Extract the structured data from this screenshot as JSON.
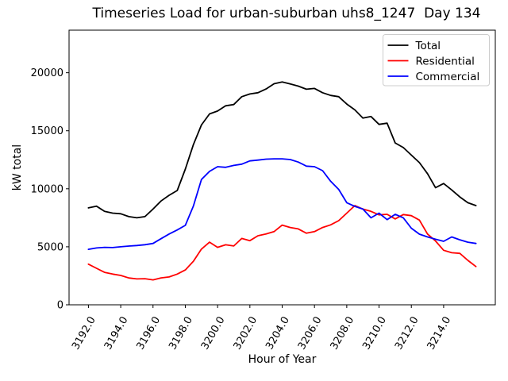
{
  "chart_data": {
    "type": "line",
    "title": "Timeseries Load for urban-suburban uhs8_1247  Day 134",
    "xlabel": "Hour of Year",
    "ylabel": "kW total",
    "grid": false,
    "x_start": 3192.0,
    "x_step": 0.5,
    "xlim": [
      3190.8,
      3217.2
    ],
    "ylim": [
      0,
      23670
    ],
    "x_tick_values": [
      3192,
      3194,
      3196,
      3198,
      3200,
      3202,
      3204,
      3206,
      3208,
      3210,
      3212,
      3214
    ],
    "x_tick_labels": [
      "3192.0",
      "3194.0",
      "3196.0",
      "3198.0",
      "3200.0",
      "3202.0",
      "3204.0",
      "3206.0",
      "3208.0",
      "3210.0",
      "3212.0",
      "3214.0"
    ],
    "y_tick_values": [
      0,
      5000,
      10000,
      15000,
      20000
    ],
    "y_tick_labels": [
      "0",
      "5000",
      "10000",
      "15000",
      "20000"
    ],
    "x_tick_rotation_deg": 60,
    "legend": {
      "position": "upper right",
      "border_color": "#cccccc",
      "background": "#ffffff",
      "entries": [
        "Total",
        "Residential",
        "Commercial"
      ]
    },
    "series": [
      {
        "name": "Total",
        "color": "#000000",
        "values": [
          8350,
          8500,
          8050,
          7900,
          7850,
          7600,
          7500,
          7600,
          8250,
          8950,
          9440,
          9850,
          11700,
          13800,
          15500,
          16450,
          16700,
          17150,
          17260,
          17940,
          18170,
          18280,
          18600,
          19050,
          19200,
          19030,
          18850,
          18580,
          18650,
          18280,
          18050,
          17940,
          17300,
          16800,
          16100,
          16230,
          15550,
          15650,
          13950,
          13550,
          12900,
          12250,
          11300,
          10100,
          10450,
          9900,
          9300,
          8800,
          8550
        ]
      },
      {
        "name": "Residential",
        "color": "#ff0000",
        "values": [
          3500,
          3150,
          2800,
          2650,
          2530,
          2310,
          2230,
          2250,
          2150,
          2320,
          2400,
          2650,
          3000,
          3750,
          4800,
          5400,
          4950,
          5170,
          5070,
          5720,
          5530,
          5950,
          6100,
          6310,
          6870,
          6660,
          6540,
          6170,
          6310,
          6660,
          6890,
          7250,
          7900,
          8550,
          8250,
          8050,
          7750,
          7800,
          7400,
          7780,
          7680,
          7300,
          6100,
          5500,
          4700,
          4490,
          4430,
          3830,
          3300
        ]
      },
      {
        "name": "Commercial",
        "color": "#0000ff",
        "values": [
          4780,
          4900,
          4950,
          4930,
          5000,
          5060,
          5110,
          5180,
          5290,
          5700,
          6100,
          6450,
          6850,
          8500,
          10800,
          11500,
          11900,
          11850,
          12010,
          12120,
          12400,
          12470,
          12550,
          12580,
          12580,
          12520,
          12300,
          11950,
          11900,
          11560,
          10650,
          9950,
          8800,
          8480,
          8250,
          7500,
          7900,
          7340,
          7800,
          7500,
          6600,
          6090,
          5850,
          5650,
          5470,
          5850,
          5600,
          5400,
          5290
        ]
      }
    ]
  }
}
